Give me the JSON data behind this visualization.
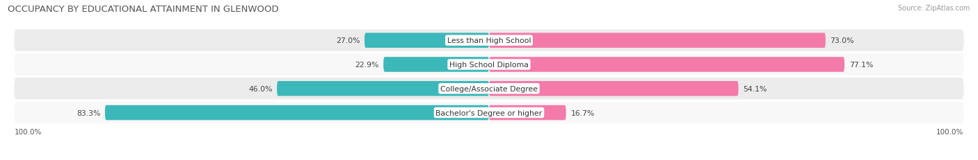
{
  "title": "OCCUPANCY BY EDUCATIONAL ATTAINMENT IN GLENWOOD",
  "source": "Source: ZipAtlas.com",
  "categories": [
    "Less than High School",
    "High School Diploma",
    "College/Associate Degree",
    "Bachelor's Degree or higher"
  ],
  "owner_pct": [
    27.0,
    22.9,
    46.0,
    83.3
  ],
  "renter_pct": [
    73.0,
    77.1,
    54.1,
    16.7
  ],
  "owner_color": "#3db8ba",
  "renter_color": "#f47aaa",
  "row_bg_colors": [
    "#ececec",
    "#f8f8f8",
    "#ececec",
    "#f8f8f8"
  ],
  "title_fontsize": 9.5,
  "label_fontsize": 7.8,
  "pct_fontsize": 7.8,
  "tick_fontsize": 7.5,
  "legend_fontsize": 8,
  "source_fontsize": 7
}
